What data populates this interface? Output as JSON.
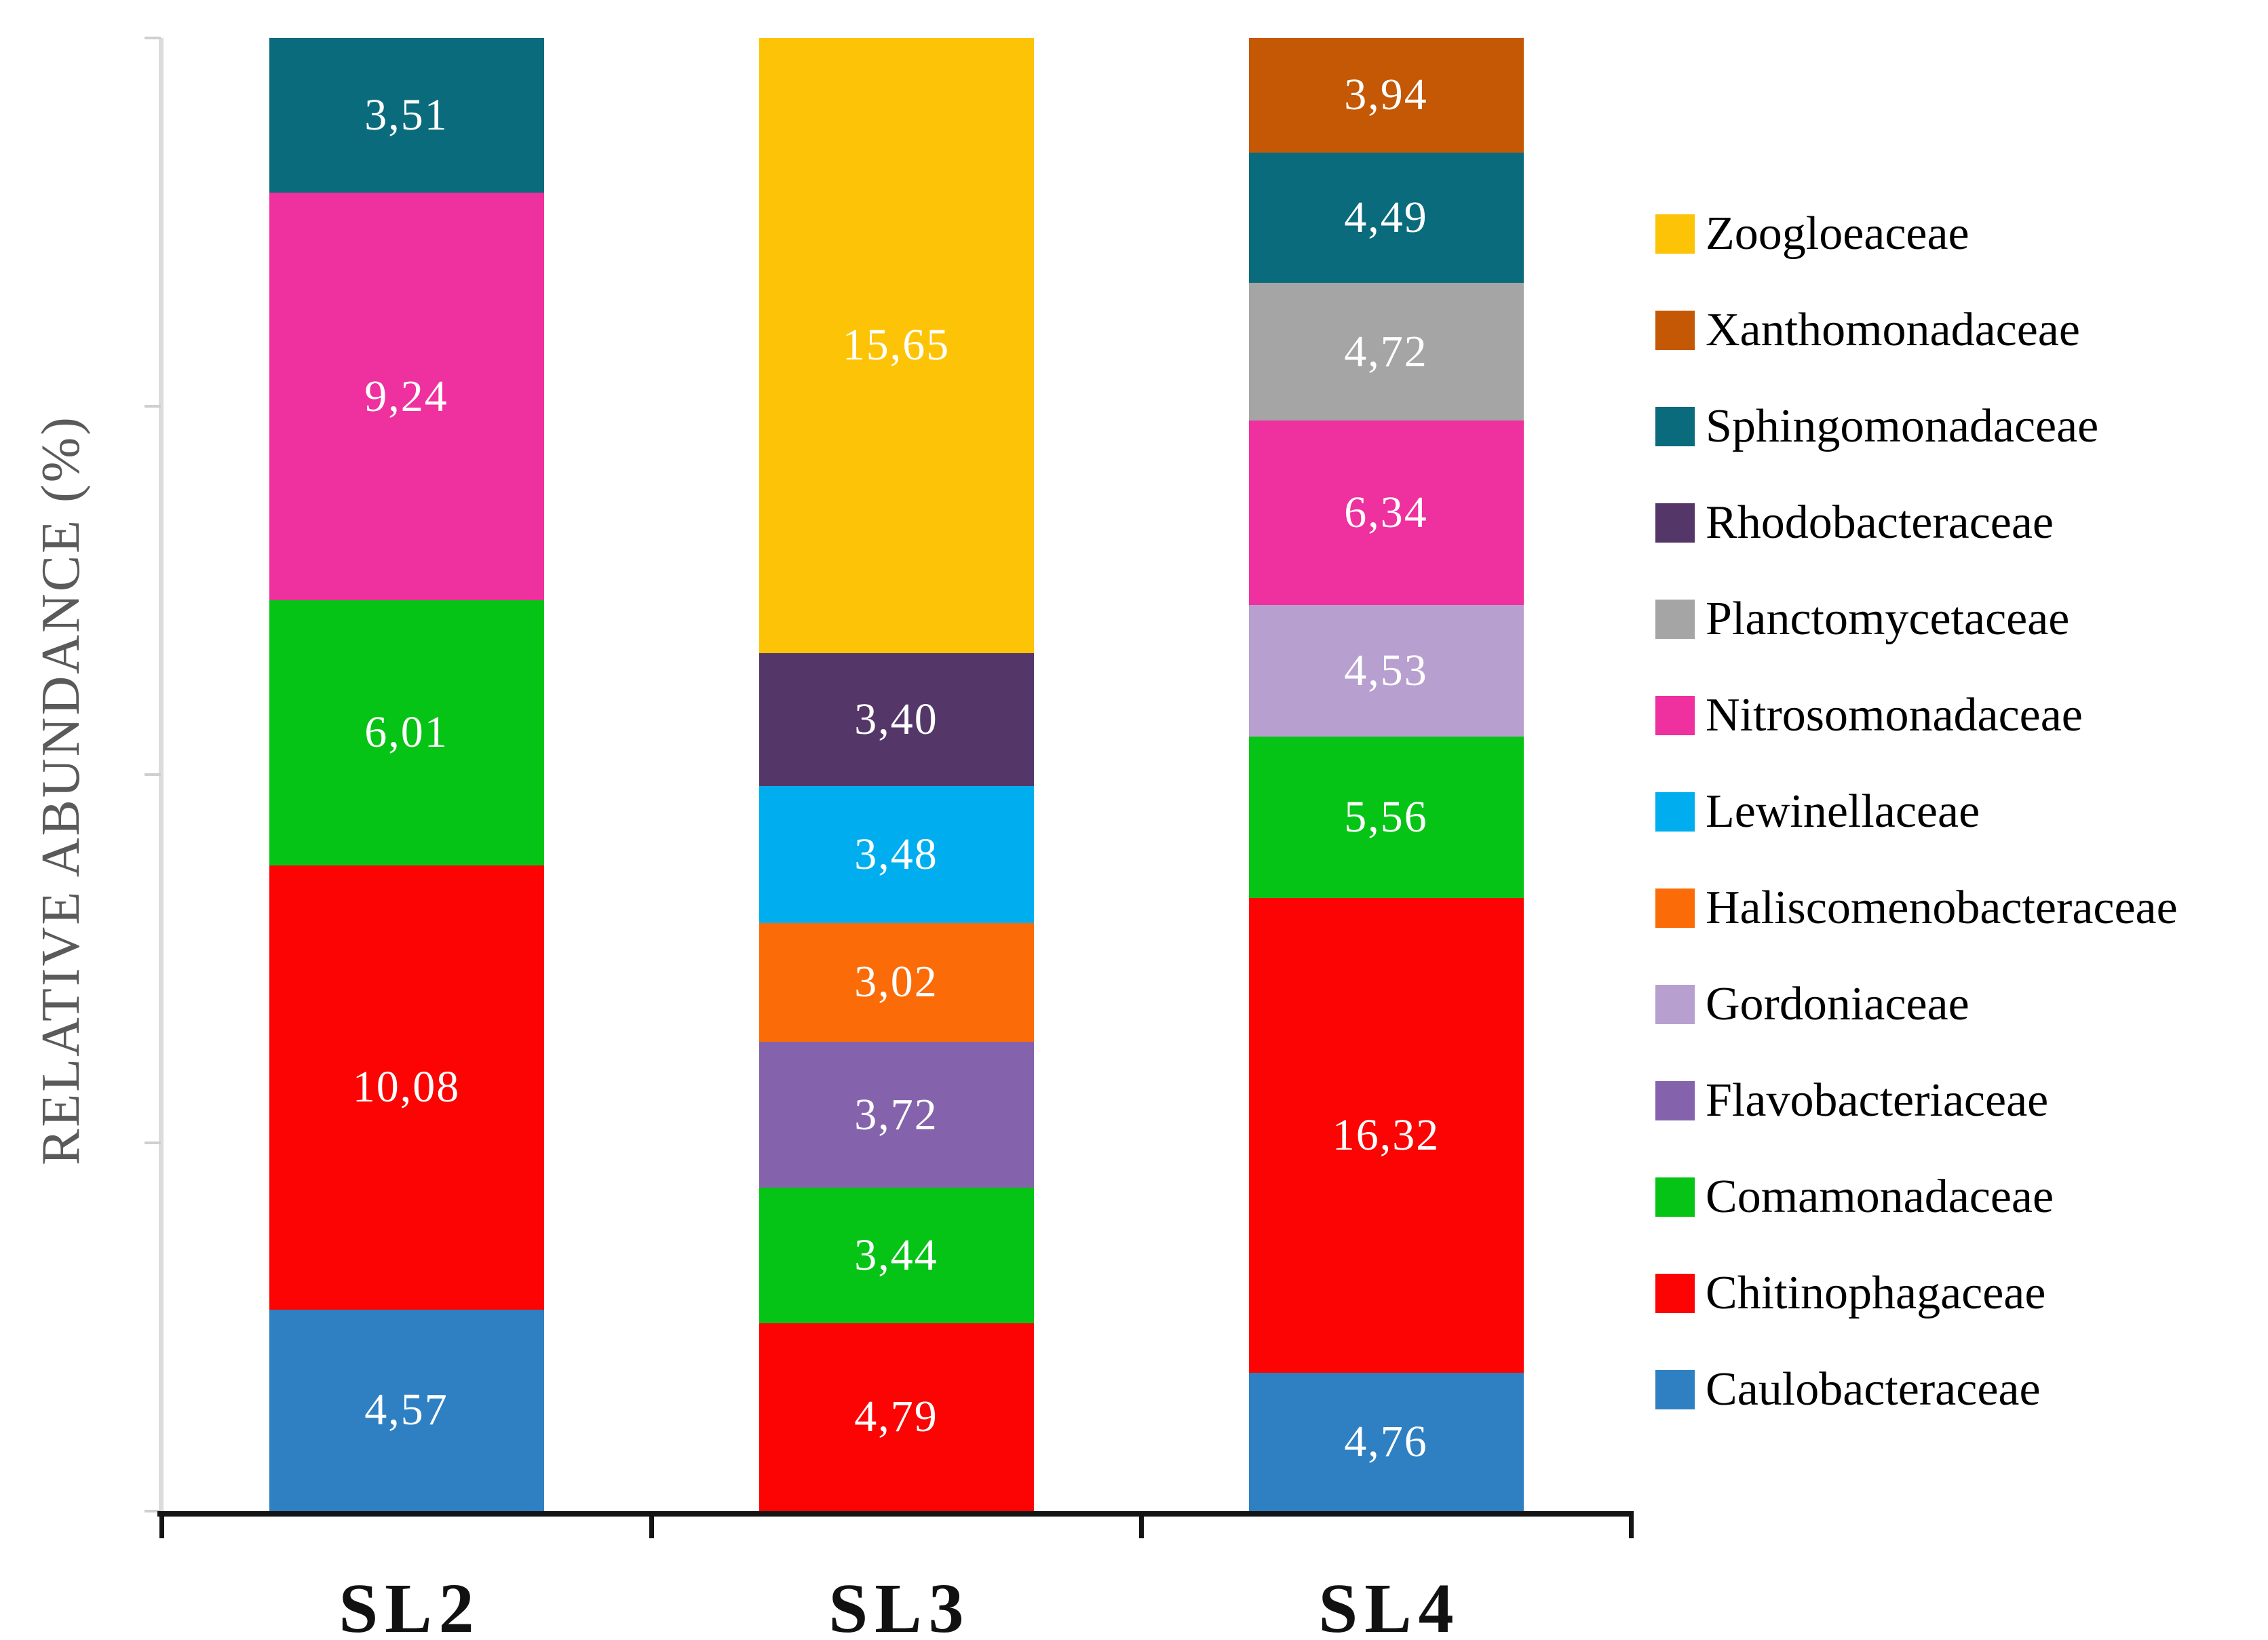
{
  "chart_data": {
    "type": "bar",
    "stacked": true,
    "title": "",
    "y_axis_title": "RELATIVE ABUNDANCE (%)",
    "y_axis_tick_labels_visible": false,
    "y_tick_count": 5,
    "grid": false,
    "legend_position": "right",
    "value_decimal_separator": ",",
    "categories": [
      "SL2",
      "SL3",
      "SL4"
    ],
    "legend": [
      {
        "name": "Zoogloeaceae",
        "color": "#FDC306"
      },
      {
        "name": "Xanthomonadaceae",
        "color": "#C55805"
      },
      {
        "name": "Sphingomonadaceae",
        "color": "#0A6B7C"
      },
      {
        "name": "Rhodobacteraceae",
        "color": "#543768"
      },
      {
        "name": "Planctomycetaceae",
        "color": "#A5A5A5"
      },
      {
        "name": "Nitrosomonadaceae",
        "color": "#EF309F"
      },
      {
        "name": "Lewinellaceae",
        "color": "#00AEEF"
      },
      {
        "name": "Haliscomenobacteraceae",
        "color": "#FB6B07"
      },
      {
        "name": "Gordoniaceae",
        "color": "#B7A0CF"
      },
      {
        "name": "Flavobacteriaceae",
        "color": "#8463AC"
      },
      {
        "name": "Comamonadaceae",
        "color": "#06C415"
      },
      {
        "name": "Chitinophagaceae",
        "color": "#FC0404"
      },
      {
        "name": "Caulobacteraceae",
        "color": "#2E80C2"
      }
    ],
    "bars": [
      {
        "category": "SL2",
        "segments_bottom_to_top": [
          {
            "family": "Caulobacteraceae",
            "value": 4.57,
            "label": "4,57"
          },
          {
            "family": "Chitinophagaceae",
            "value": 10.08,
            "label": "10,08"
          },
          {
            "family": "Comamonadaceae",
            "value": 6.01,
            "label": "6,01"
          },
          {
            "family": "Nitrosomonadaceae",
            "value": 9.24,
            "label": "9,24"
          },
          {
            "family": "Sphingomonadaceae",
            "value": 3.51,
            "label": "3,51"
          }
        ]
      },
      {
        "category": "SL3",
        "segments_bottom_to_top": [
          {
            "family": "Chitinophagaceae",
            "value": 4.79,
            "label": "4,79"
          },
          {
            "family": "Comamonadaceae",
            "value": 3.44,
            "label": "3,44"
          },
          {
            "family": "Flavobacteriaceae",
            "value": 3.72,
            "label": "3,72"
          },
          {
            "family": "Haliscomenobacteraceae",
            "value": 3.02,
            "label": "3,02"
          },
          {
            "family": "Lewinellaceae",
            "value": 3.48,
            "label": "3,48"
          },
          {
            "family": "Rhodobacteraceae",
            "value": 3.4,
            "label": "3,40"
          },
          {
            "family": "Zoogloeaceae",
            "value": 15.65,
            "label": "15,65"
          }
        ]
      },
      {
        "category": "SL4",
        "segments_bottom_to_top": [
          {
            "family": "Caulobacteraceae",
            "value": 4.76,
            "label": "4,76"
          },
          {
            "family": "Chitinophagaceae",
            "value": 16.32,
            "label": "16,32"
          },
          {
            "family": "Comamonadaceae",
            "value": 5.56,
            "label": "5,56"
          },
          {
            "family": "Gordoniaceae",
            "value": 4.53,
            "label": "4,53"
          },
          {
            "family": "Nitrosomonadaceae",
            "value": 6.34,
            "label": "6,34"
          },
          {
            "family": "Planctomycetaceae",
            "value": 4.72,
            "label": "4,72"
          },
          {
            "family": "Sphingomonadaceae",
            "value": 4.49,
            "label": "4,49"
          },
          {
            "family": "Xanthomonadaceae",
            "value": 3.94,
            "label": "3,94"
          }
        ]
      }
    ]
  }
}
